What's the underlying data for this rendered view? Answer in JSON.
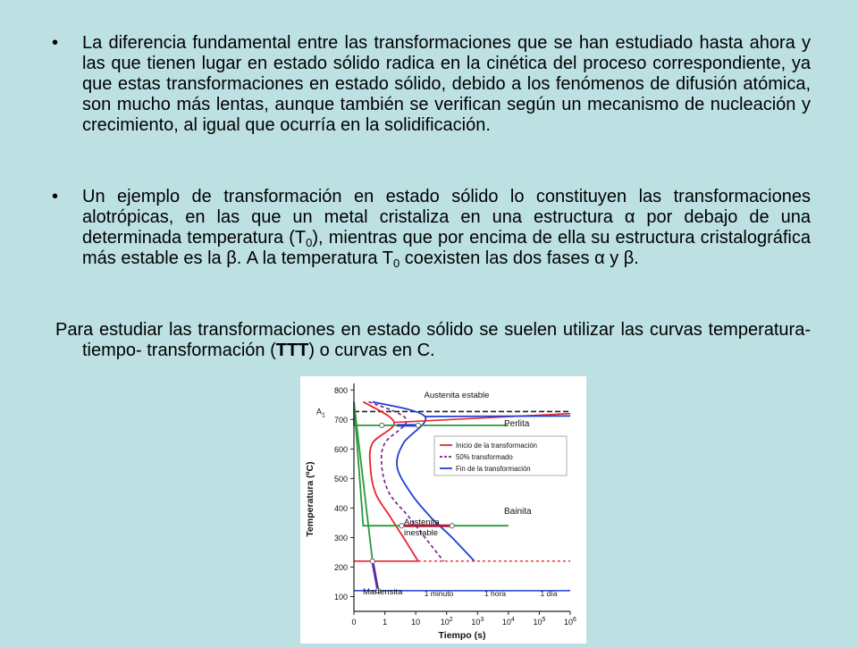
{
  "bullet_symbol": "•",
  "paragraphs": {
    "p1": {
      "text": "La diferencia fundamental entre las transformaciones que se han estudiado hasta ahora y las que tienen lugar en estado sólido radica en la cinética del proceso correspondiente, ya que estas transformaciones en estado sólido, debido a los fenómenos de difusión atómica, son mucho más lentas, aunque también se verifican según un mecanismo de nucleación y crecimiento, al igual que ocurría en la solidificación."
    },
    "p2": {
      "part1": "Un ejemplo de transformación en estado sólido lo constituyen las transformaciones alotrópicas, en las que un metal cristaliza en una estructura α por debajo de una determinada temperatura (T",
      "sub1": "0",
      "part2": "), mientras que por encima de ella su estructura cristalográfica más estable es la β. A la temperatura T",
      "sub2": "0",
      "part3": " coexisten las dos fases α y β."
    },
    "p3": {
      "part1": "Para estudiar las transformaciones en estado sólido se suelen utilizar las curvas temperatura- tiempo- transformación (",
      "bold": "TTT",
      "part2": ") o curvas en C."
    }
  },
  "chart_data": {
    "type": "line",
    "xlabel": "Tiempo (s)",
    "ylabel": "Temperatura (ºC)",
    "x_scale": "log",
    "x_ticks": [
      "0",
      "1",
      "10",
      "10",
      "10",
      "10",
      "10",
      "10"
    ],
    "x_tick_exponents": [
      "",
      "",
      "",
      "2",
      "3",
      "4",
      "5",
      "6"
    ],
    "x_tick_values": [
      1,
      10,
      100,
      1000,
      10000,
      100000,
      1000000,
      10000000
    ],
    "y_ticks": [
      100,
      200,
      300,
      400,
      500,
      600,
      700,
      800
    ],
    "ylim": [
      50,
      810
    ],
    "grid": false,
    "legend_position": "center-right",
    "legend": [
      {
        "label": "Inicio de la transformación",
        "color": "#e8232a",
        "style": "solid"
      },
      {
        "label": "50% transformado",
        "color": "#7d1a8c",
        "style": "dashed"
      },
      {
        "label": "Fin de la transformación",
        "color": "#1e3fd6",
        "style": "solid"
      }
    ],
    "annotations": {
      "austenita_estable": "Austenita estable",
      "a1_label": "A",
      "a1_sub": "1",
      "perlita": "Perlita",
      "bainita": "Bainita",
      "austenita_inestable_1": "Austenita",
      "austenita_inestable_2": "inestable",
      "martensita": "Martensita",
      "un_minuto": "1 minuto",
      "una_hora": "1 hora",
      "un_dia": "1 día"
    },
    "A1_temperature": 727,
    "Ms_temperature": 220,
    "Mf_temperature": 120,
    "curves": {
      "inicio": [
        [
          2,
          760
        ],
        [
          20,
          690
        ],
        [
          4,
          620
        ],
        [
          3.4,
          540
        ],
        [
          5,
          450
        ],
        [
          15,
          370
        ],
        [
          40,
          300
        ],
        [
          120,
          220
        ]
      ],
      "cincuenta": [
        [
          3,
          760
        ],
        [
          50,
          700
        ],
        [
          10,
          620
        ],
        [
          8,
          540
        ],
        [
          14,
          450
        ],
        [
          60,
          370
        ],
        [
          200,
          300
        ],
        [
          800,
          220
        ]
      ],
      "fin": [
        [
          4,
          760
        ],
        [
          200,
          710
        ],
        [
          40,
          620
        ],
        [
          25,
          540
        ],
        [
          70,
          450
        ],
        [
          300,
          370
        ],
        [
          1500,
          300
        ],
        [
          8000,
          220
        ]
      ]
    },
    "cooling_paths": {
      "perlita": [
        [
          0,
          760
        ],
        [
          1,
          680
        ],
        [
          100000,
          680
        ]
      ],
      "bainita": [
        [
          0,
          760
        ],
        [
          2,
          340
        ],
        [
          100000,
          340
        ]
      ],
      "martensita": [
        [
          0,
          760
        ],
        [
          4,
          220
        ],
        [
          6,
          120
        ]
      ]
    }
  }
}
